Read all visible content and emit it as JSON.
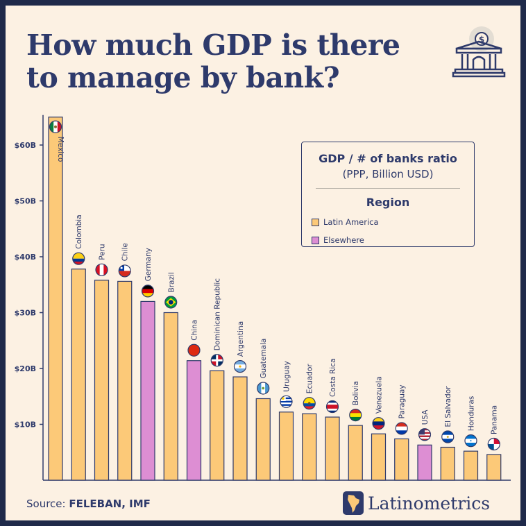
{
  "title": "How much GDP is there to manage by bank?",
  "legend": {
    "title": "GDP / # of banks ratio",
    "subtitle": "(PPP, Billion USD)",
    "region_title": "Region",
    "items": [
      {
        "label": "Latin America",
        "color": "#fcc978"
      },
      {
        "label": "Elsewhere",
        "color": "#dd8ed3"
      }
    ]
  },
  "source": {
    "prefix": "Source: ",
    "text": "FELEBAN, IMF"
  },
  "brand": "Latinometrics",
  "icons": {
    "header": "bank-dollar-icon",
    "brand": "latin-america-map-icon"
  },
  "colors": {
    "latin_america": "#fcc978",
    "elsewhere": "#dd8ed3",
    "text": "#2e3a6b",
    "background": "#fcf1e3"
  },
  "chart_data": {
    "type": "bar",
    "title": "",
    "xlabel": "",
    "ylabel": "",
    "ylim": [
      0,
      65
    ],
    "yticks": [
      {
        "value": 10,
        "label": "$10B"
      },
      {
        "value": 20,
        "label": "$20B"
      },
      {
        "value": 30,
        "label": "$30B"
      },
      {
        "value": 40,
        "label": "$40B"
      },
      {
        "value": 50,
        "label": "$50B"
      },
      {
        "value": 60,
        "label": "$60B"
      }
    ],
    "categories": [
      "Mexico",
      "Colombia",
      "Peru",
      "Chile",
      "Germany",
      "Brazil",
      "China",
      "Dominican Republic",
      "Argentina",
      "Guatemala",
      "Uruguay",
      "Ecuador",
      "Costa Rica",
      "Bolivia",
      "Venezuela",
      "Paraguay",
      "USA",
      "El Salvador",
      "Honduras",
      "Panama"
    ],
    "values": [
      65,
      37.8,
      35.8,
      35.6,
      32,
      30,
      21.4,
      19.6,
      18.5,
      14.6,
      12.2,
      11.9,
      11.3,
      9.8,
      8.3,
      7.4,
      6.3,
      5.9,
      5.2,
      4.6
    ],
    "regions": [
      "Latin America",
      "Latin America",
      "Latin America",
      "Latin America",
      "Elsewhere",
      "Latin America",
      "Elsewhere",
      "Latin America",
      "Latin America",
      "Latin America",
      "Latin America",
      "Latin America",
      "Latin America",
      "Latin America",
      "Latin America",
      "Latin America",
      "Elsewhere",
      "Latin America",
      "Latin America",
      "Latin America"
    ],
    "flag_icons": [
      "mexico-flag-icon",
      "colombia-flag-icon",
      "peru-flag-icon",
      "chile-flag-icon",
      "germany-flag-icon",
      "brazil-flag-icon",
      "china-flag-icon",
      "dominican-republic-flag-icon",
      "argentina-flag-icon",
      "guatemala-flag-icon",
      "uruguay-flag-icon",
      "ecuador-flag-icon",
      "costa-rica-flag-icon",
      "bolivia-flag-icon",
      "venezuela-flag-icon",
      "paraguay-flag-icon",
      "usa-flag-icon",
      "el-salvador-flag-icon",
      "honduras-flag-icon",
      "panama-flag-icon"
    ],
    "grid": false,
    "legend_position": "top-right"
  }
}
